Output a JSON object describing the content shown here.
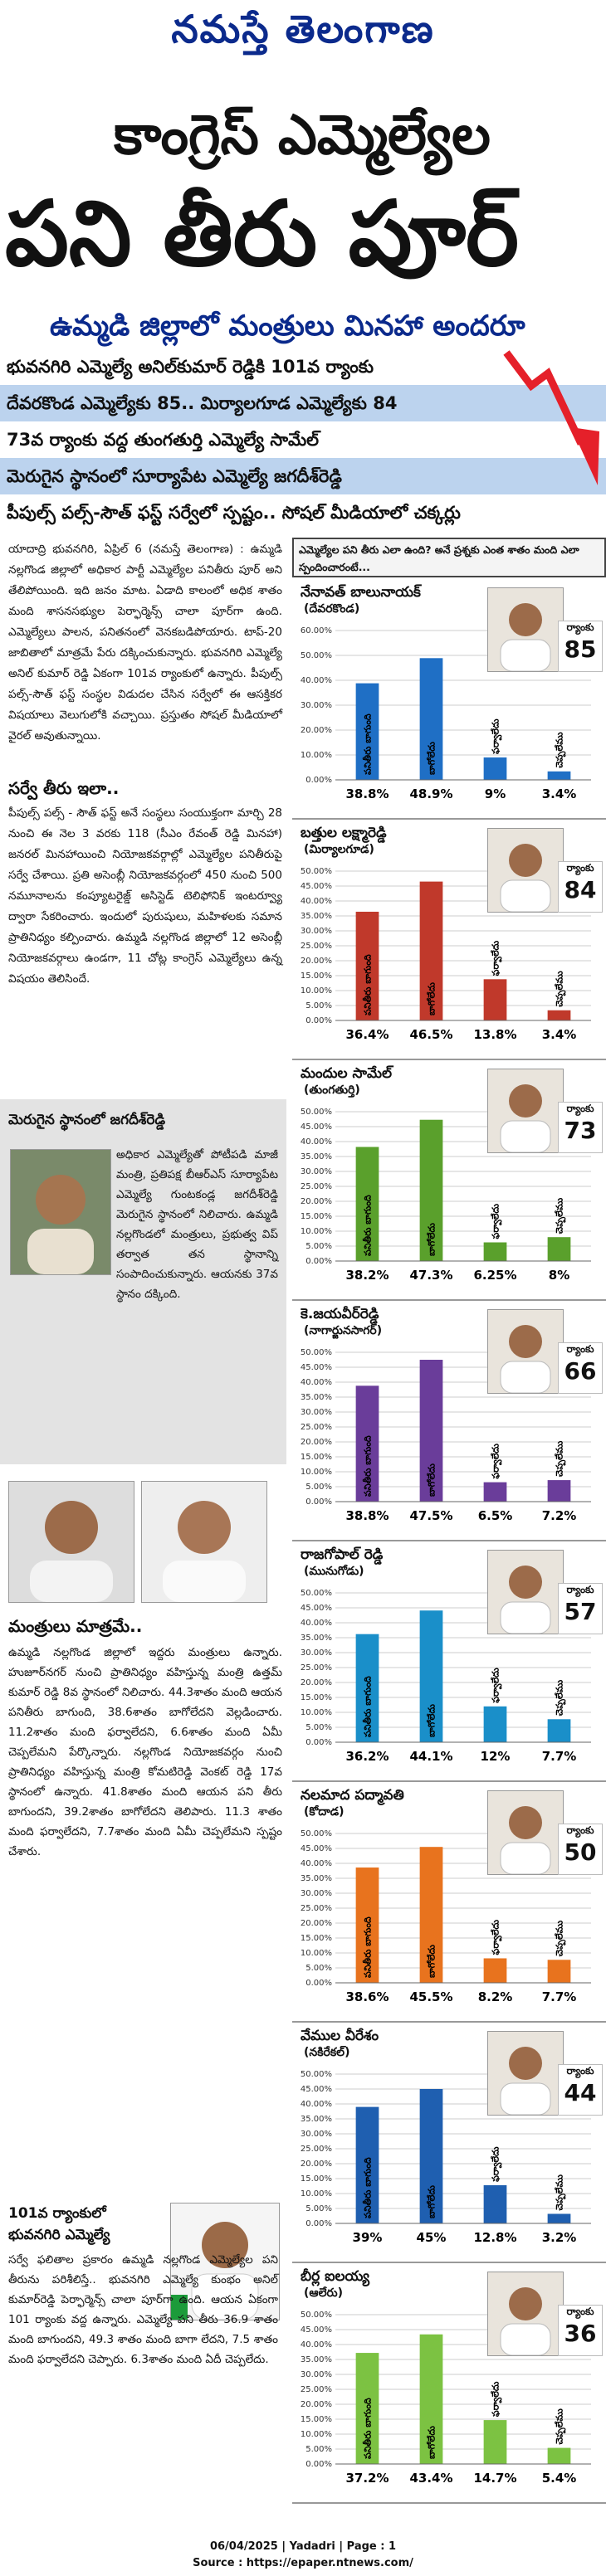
{
  "masthead": "నమస్తే తెలంగాణ",
  "headline": {
    "line1": "కాంగ్రెస్ ఎమ్మెల్యేల",
    "line2": "పని తీరు పూర్",
    "line3": "ఉమ్మడి జిల్లాలో మంత్రులు మినహా అందరూ అంతే.."
  },
  "subheads": [
    "భువనగిరి ఎమ్మెల్యే అనిల్‌కుమార్ రెడ్డికి 101వ ర్యాంకు",
    "దేవరకొండ ఎమ్మెల్యేకు 85.. మిర్యాలగూడ ఎమ్మెల్యేకు 84",
    "73వ ర్యాంకు వద్ద తుంగతుర్తి ఎమ్మెల్యే సామేల్",
    "మెరుగైన స్థానంలో సూర్యాపేట ఎమ్మెల్యే జగదీశ్‌రెడ్డి",
    "పీపుల్స్ పల్స్-సౌత్ ఫస్ట్ సర్వేలో స్పష్టం.. సోషల్ మీడియాలో చక్కర్లు"
  ],
  "panel_header": "ఎమ్మెల్యేల పని తీరు ఎలా ఉంది? అనే ప్రశ్నకు ఎంత శాతం మంది ఎలా స్పందించారంటే...",
  "article": {
    "intro": "యాదాద్రి భువనగిరి, ఏప్రిల్ 6 (నమస్తే తెలంగాణ) : ఉమ్మడి నల్లగొండ జిల్లాలో అధికార పార్టీ ఎమ్మెల్యేల పనితీరు పూర్ అని తేలిపోయింది. ఇది జనం మాట. ఏడాది కాలంలో అధిక శాతం మంది శాసనసభ్యుల పెర్ఫార్మెన్స్ చాలా పూర్‌గా ఉంది. ఎమ్మెల్యేలు పాలన, పనితనంలో వెనకబడిపోయారు. టాప్-20 జాబితాలో మాత్రమే పేరు దక్కించుకున్నారు. భువనగిరి ఎమ్మెల్యే అనిల్ కుమార్ రెడ్డి ఏకంగా 101వ ర్యాంకులో ఉన్నారు. పీపుల్స్ పల్స్-సౌత్ ఫస్ట్ సంస్థల విడుదల చేసిన సర్వేలో ఈ ఆసక్తికర విషయాలు వెలుగులోకి వచ్చాయి. ప్రస్తుతం సోషల్ మీడియాలో వైరల్ అవుతున్నాయి.",
    "survey_title": "సర్వే తీరు ఇలా..",
    "survey_text": "పీపుల్స్ పల్స్ - సౌత్ ఫస్ట్ అనే సంస్థలు సంయుక్తంగా మార్చి 28 నుంచి ఈ నెల 3 వరకు 118 (సీఎం రేవంత్ రెడ్డి మినహా) జనరల్ మినహాయించి నియోజకవర్గాల్లో ఎమ్మెల్యేల పనితీరుపై సర్వే చేశాయి. ప్రతి అసెంబ్లీ నియోజకవర్గంలో 450 నుంచి 500 నమూనాలను కంప్యూటరైజ్డ్ అసిస్టెడ్ టెలిఫోనిక్ ఇంటర్వ్యూ ద్వారా సేకరించారు. ఇందులో పురుషులు, మహిళలకు సమాన ప్రాతినిధ్యం కల్పించారు. ఉమ్మడి నల్లగొండ జిల్లాలో 12 అసెంబ్లీ నియోజకవర్గాలు ఉండగా, 11 చోట్ల కాంగ్రెస్ ఎమ్మెల్యేలు ఉన్న విషయం తెలిసిందే.",
    "jagadish_title": "మెరుగైన స్థానంలో జగదీశ్‌రెడ్డి",
    "jagadish_text": "అధికార ఎమ్మెల్యేతో పోటీపడి మాజీ మంత్రి, ప్రతిపక్ష బీఆర్ఎస్ సూర్యాపేట ఎమ్మెల్యే గుంటకండ్ల జగదీశ్‌రెడ్డి మెరుగైన స్థానంలో నిలిచారు. ఉమ్మడి నల్లగొండలో మంత్రులు, ప్రభుత్వ విప్ తర్వాత తన స్థానాన్ని సంపాదించుకున్నారు. ఆయనకు 37వ స్థానం దక్కింది.",
    "ministers_title": "మంత్రులు మాత్రమే..",
    "ministers_text": "ఉమ్మడి నల్లగొండ జిల్లాలో ఇద్దరు మంత్రులు ఉన్నారు. హుజూర్‌నగర్ నుంచి ప్రాతినిధ్యం వహిస్తున్న మంత్రి ఉత్తమ్ కుమార్ రెడ్డి 8వ స్థానంలో నిలిచారు. 44.3శాతం మంది ఆయన పనితీరు బాగుంది, 38.6శాతం బాగోలేదని వెల్లడించారు. 11.2శాతం మంది ఫర్వాలేదని, 6.6శాతం మంది ఏమీ చెప్పలేమని పేర్కొన్నారు. నల్లగొండ నియోజకవర్గం నుంచి ప్రాతినిధ్యం వహిస్తున్న మంత్రి కోమటిరెడ్డి వెంకట్ రెడ్డి 17వ స్థానంలో ఉన్నారు. 41.8శాతం మంది ఆయన పని తీరు బాగుందని, 39.2శాతం బాగోలేదని తెలిపారు. 11.3 శాతం మంది ఫర్వాలేదని, 7.7శాతం మంది ఏమీ చెప్పలేమని స్పష్టం చేశారు.",
    "bhuvanagiri_title1": "101వ ర్యాంకులో",
    "bhuvanagiri_title2": "భువనగిరి ఎమ్మెల్యే",
    "bhuvanagiri_text": "సర్వే ఫలితాల ప్రకారం ఉమ్మడి నల్లగొండ ఎమ్మెల్యేల పని తీరును పరిశీలిస్తే.. భువనగిరి ఎమ్మెల్యే కుంభం అనిల్ కుమార్‌రెడ్డి పెర్ఫార్మెన్స్ చాలా పూర్‌గా ఉంది. ఆయన ఏకంగా 101 ర్యాంకు వద్ద ఉన్నారు. ఎమ్మెల్యే పని తీరు 36.9 శాతం మంది బాగుందని, 49.3 శాతం మంది బాగా లేదని, 7.5 శాతం మంది ఫర్వాలేదని చెప్పారు. 6.3శాతం మంది ఏదీ చెప్పలేదు."
  },
  "bar_labels": [
    "పనితీరు బాగుంది",
    "బాగోలేదు",
    "ఫర్వాలేదు",
    "చెప్పలేము"
  ],
  "rank_word": "ర్యాంకు",
  "colors": {
    "masthead": "#0b2a8c",
    "subhead_band": "#bcd3ee",
    "arrow": "#e5202a",
    "sidebar": "#e3e3e3"
  },
  "chart_data": [
    {
      "type": "bar",
      "name": "నేనావత్ బాలునాయక్",
      "district": "(దేవరకొండ)",
      "rank": "85",
      "color": "#1f6fc5",
      "ylim": [
        0,
        60
      ],
      "ticks": [
        "0.00%",
        "10.00%",
        "20.00%",
        "30.00%",
        "40.00%",
        "50.00%",
        "60.00%"
      ],
      "values": [
        38.8,
        48.9,
        9,
        3.4
      ],
      "value_labels": [
        "38.8%",
        "48.9%",
        "9%",
        "3.4%"
      ]
    },
    {
      "type": "bar",
      "name": "బత్తుల లక్ష్మారెడ్డి",
      "district": "(మిర్యాలగూడ)",
      "rank": "84",
      "color": "#c0392b",
      "ylim": [
        0,
        50
      ],
      "ticks": [
        "0.00%",
        "5.00%",
        "10.00%",
        "15.00%",
        "20.00%",
        "25.00%",
        "30.00%",
        "35.00%",
        "40.00%",
        "45.00%",
        "50.00%"
      ],
      "values": [
        36.4,
        46.5,
        13.8,
        3.4
      ],
      "value_labels": [
        "36.4%",
        "46.5%",
        "13.8%",
        "3.4%"
      ]
    },
    {
      "type": "bar",
      "name": "మందుల సామేల్",
      "district": "(తుంగతుర్తి)",
      "rank": "73",
      "color": "#5aa02c",
      "ylim": [
        0,
        50
      ],
      "ticks": [
        "0.00%",
        "5.00%",
        "10.00%",
        "15.00%",
        "20.00%",
        "25.00%",
        "30.00%",
        "35.00%",
        "40.00%",
        "45.00%",
        "50.00%"
      ],
      "values": [
        38.2,
        47.3,
        6.25,
        8
      ],
      "value_labels": [
        "38.2%",
        "47.3%",
        "6.25%",
        "8%"
      ]
    },
    {
      "type": "bar",
      "name": "కె.జయవీర్‌రెడ్డి",
      "district": "(నాగార్జునసాగర్)",
      "rank": "66",
      "color": "#6a3d9a",
      "ylim": [
        0,
        50
      ],
      "ticks": [
        "0.00%",
        "5.00%",
        "10.00%",
        "15.00%",
        "20.00%",
        "25.00%",
        "30.00%",
        "35.00%",
        "40.00%",
        "45.00%",
        "50.00%"
      ],
      "values": [
        38.8,
        47.5,
        6.5,
        7.2
      ],
      "value_labels": [
        "38.8%",
        "47.5%",
        "6.5%",
        "7.2%"
      ]
    },
    {
      "type": "bar",
      "name": "రాజగోపాల్ రెడ్డి",
      "district": "(మునుగోడు)",
      "rank": "57",
      "color": "#1a8fc9",
      "ylim": [
        0,
        50
      ],
      "ticks": [
        "0.00%",
        "5.00%",
        "10.00%",
        "15.00%",
        "20.00%",
        "25.00%",
        "30.00%",
        "35.00%",
        "40.00%",
        "45.00%",
        "50.00%"
      ],
      "values": [
        36.2,
        44.1,
        12,
        7.7
      ],
      "value_labels": [
        "36.2%",
        "44.1%",
        "12%",
        "7.7%"
      ]
    },
    {
      "type": "bar",
      "name": "నలమాద పద్మావతి",
      "district": "(కోదాడ)",
      "rank": "50",
      "color": "#e8731e",
      "ylim": [
        0,
        50
      ],
      "ticks": [
        "0.00%",
        "5.00%",
        "10.00%",
        "15.00%",
        "20.00%",
        "25.00%",
        "30.00%",
        "35.00%",
        "40.00%",
        "45.00%",
        "50.00%"
      ],
      "values": [
        38.6,
        45.5,
        8.2,
        7.7
      ],
      "value_labels": [
        "38.6%",
        "45.5%",
        "8.2%",
        "7.7%"
      ]
    },
    {
      "type": "bar",
      "name": "వేముల వీరేశం",
      "district": "(నకిరేకల్)",
      "rank": "44",
      "color": "#1f5fb0",
      "ylim": [
        0,
        50
      ],
      "ticks": [
        "0.00%",
        "5.00%",
        "10.00%",
        "15.00%",
        "20.00%",
        "25.00%",
        "30.00%",
        "35.00%",
        "40.00%",
        "45.00%",
        "50.00%"
      ],
      "values": [
        39,
        45,
        12.8,
        3.2
      ],
      "value_labels": [
        "39%",
        "45%",
        "12.8%",
        "3.2%"
      ]
    },
    {
      "type": "bar",
      "name": "బీర్ల ఐలయ్య",
      "district": "(ఆలేరు)",
      "rank": "36",
      "color": "#7cc242",
      "ylim": [
        0,
        50
      ],
      "ticks": [
        "0.00%",
        "5.00%",
        "10.00%",
        "15.00%",
        "20.00%",
        "25.00%",
        "30.00%",
        "35.00%",
        "40.00%",
        "45.00%",
        "50.00%"
      ],
      "values": [
        37.2,
        43.4,
        14.7,
        5.4
      ],
      "value_labels": [
        "37.2%",
        "43.4%",
        "14.7%",
        "5.4%"
      ]
    }
  ],
  "footer": {
    "line1": "06/04/2025 | Yadadri | Page : 1",
    "line2": "Source : https://epaper.ntnews.com/"
  }
}
